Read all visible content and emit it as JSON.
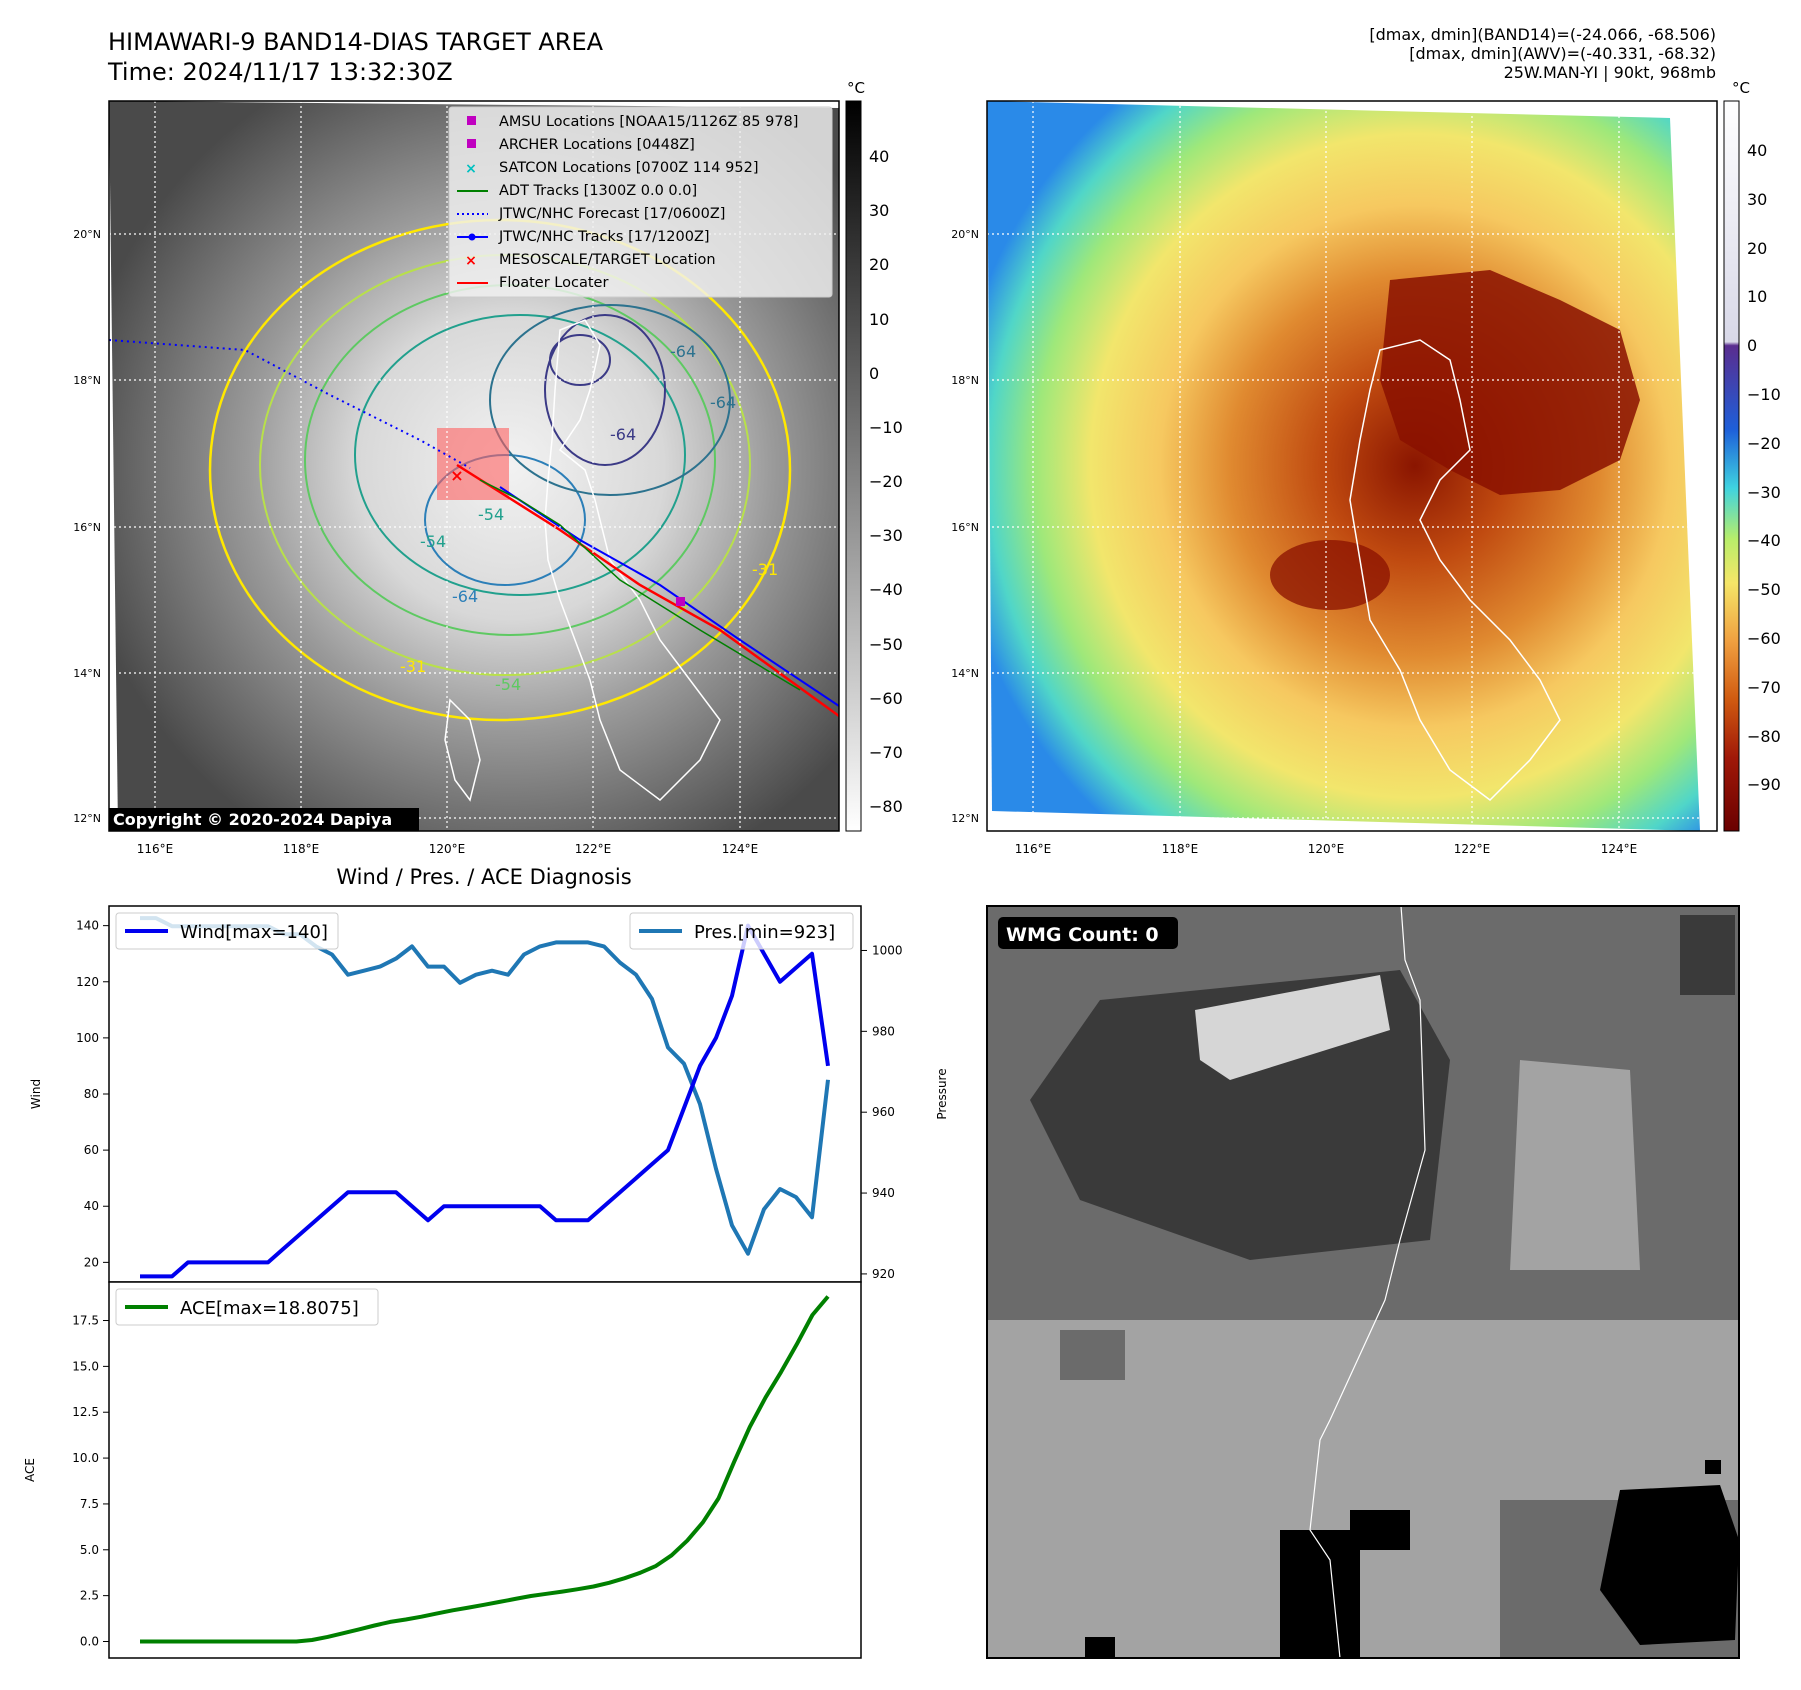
{
  "header": {
    "title_line1": "HIMAWARI-9 BAND14-DIAS TARGET AREA",
    "title_line2": "Time: 2024/11/17 13:32:30Z",
    "info_line1": "[dmax, dmin](BAND14)=(-24.066, -68.506)",
    "info_line2": "[dmax, dmin](AWV)=(-40.331, -68.32)",
    "info_line3": "25W.MAN-YI | 90kt, 968mb"
  },
  "maps": {
    "unit": "°C",
    "lon_ticks": [
      "116°E",
      "118°E",
      "120°E",
      "122°E",
      "124°E"
    ],
    "lat_ticks": [
      "20°N",
      "18°N",
      "16°N",
      "14°N",
      "12°N"
    ],
    "left_colorbar_ticks": [
      "40",
      "30",
      "20",
      "10",
      "0",
      "−10",
      "−20",
      "−30",
      "−40",
      "−50",
      "−60",
      "−70",
      "−80"
    ],
    "right_colorbar_ticks": [
      "40",
      "30",
      "20",
      "10",
      "0",
      "−10",
      "−20",
      "−30",
      "−40",
      "−50",
      "−60",
      "−70",
      "−80",
      "−90"
    ],
    "contour_labels": [
      "-64",
      "-64",
      "-64",
      "-54",
      "-64",
      "-31",
      "-31",
      "-54",
      "-54"
    ],
    "copyright": "Copyright © 2020-2024 Dapiya",
    "legend": [
      {
        "label": "AMSU Locations [NOAA15/1126Z 85 978]",
        "marker": "square",
        "color": "#c000c0"
      },
      {
        "label": "ARCHER Locations [0448Z]",
        "marker": "square",
        "color": "#c000c0"
      },
      {
        "label": "SATCON Locations [0700Z 114 952]",
        "marker": "x",
        "color": "#00c0c0"
      },
      {
        "label": "ADT Tracks [1300Z 0.0 0.0]",
        "marker": "line",
        "color": "#008000"
      },
      {
        "label": "JTWC/NHC Forecast [17/0600Z]",
        "marker": "dotted",
        "color": "#0000ff"
      },
      {
        "label": "JTWC/NHC Tracks [17/1200Z]",
        "marker": "line-dot",
        "color": "#0000ff"
      },
      {
        "label": "MESOSCALE/TARGET Location",
        "marker": "x",
        "color": "#ff0000"
      },
      {
        "label": "Floater Locater",
        "marker": "line",
        "color": "#ff0000"
      }
    ]
  },
  "diagnosis": {
    "title": "Wind / Pres. / ACE Diagnosis",
    "wind_ylabel": "Wind",
    "pres_ylabel": "Pressure",
    "ace_ylabel": "ACE",
    "wind_legend": "Wind[max=140]",
    "pres_legend": "Pres.[min=923]",
    "ace_legend": "ACE[max=18.8075]"
  },
  "wmg": {
    "label": "WMG Count: 0"
  },
  "colors": {
    "wind": "#0000ee",
    "pressure": "#1f77b4",
    "ace": "#008000"
  },
  "chart_data": [
    {
      "type": "line",
      "title": "Wind / Pres. / ACE Diagnosis",
      "ylabel": "Wind",
      "y2label": "Pressure",
      "ylim": [
        13,
        147
      ],
      "y2lim": [
        918,
        1011
      ],
      "series": [
        {
          "name": "Wind[max=140]",
          "axis": "left",
          "values": [
            15,
            15,
            15,
            20,
            20,
            20,
            20,
            20,
            20,
            25,
            30,
            35,
            40,
            45,
            45,
            45,
            45,
            40,
            35,
            40,
            40,
            40,
            40,
            40,
            40,
            40,
            35,
            35,
            35,
            40,
            45,
            50,
            55,
            60,
            75,
            90,
            100,
            115,
            140,
            130,
            120,
            125,
            130,
            90
          ]
        },
        {
          "name": "Pres.[min=923]",
          "axis": "right",
          "values": [
            1008,
            1008,
            1006,
            1006,
            1006,
            1006,
            1006,
            1006,
            1006,
            1004,
            1004,
            1001,
            999,
            994,
            995,
            996,
            998,
            1001,
            996,
            996,
            992,
            994,
            995,
            994,
            999,
            1001,
            1002,
            1002,
            1002,
            1001,
            997,
            994,
            988,
            976,
            972,
            962,
            946,
            932,
            925,
            936,
            941,
            939,
            934,
            968
          ]
        }
      ]
    },
    {
      "type": "line",
      "ylabel": "ACE",
      "ylim": [
        -0.9,
        19.6
      ],
      "yticks": [
        0.0,
        2.5,
        5.0,
        7.5,
        10.0,
        12.5,
        15.0,
        17.5
      ],
      "series": [
        {
          "name": "ACE[max=18.8075]",
          "values": [
            0,
            0,
            0,
            0,
            0,
            0,
            0,
            0,
            0,
            0,
            0,
            0.08,
            0.25,
            0.45,
            0.66,
            0.87,
            1.07,
            1.2,
            1.35,
            1.53,
            1.7,
            1.85,
            2.0,
            2.16,
            2.32,
            2.48,
            2.6,
            2.72,
            2.85,
            3.0,
            3.2,
            3.45,
            3.75,
            4.12,
            4.7,
            5.5,
            6.5,
            7.8,
            9.8,
            11.7,
            13.3,
            14.7,
            16.2,
            17.8,
            18.8075
          ]
        }
      ]
    }
  ]
}
